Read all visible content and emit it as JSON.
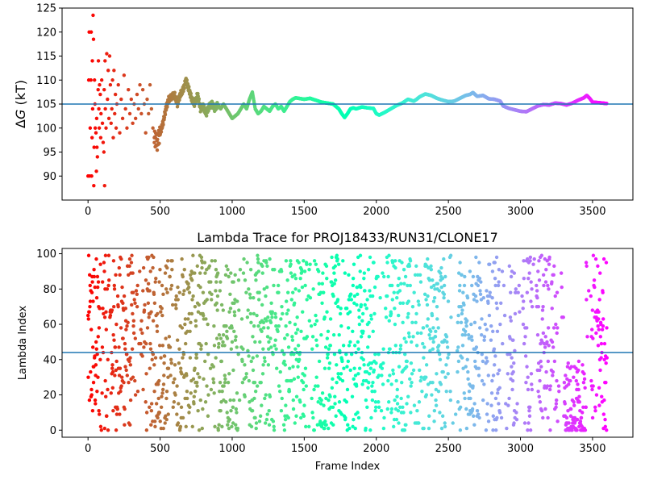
{
  "chart_data": [
    {
      "type": "scatter",
      "title": "",
      "xlabel": "",
      "ylabel": "ΔG (kT)",
      "ylabel_main": "Δ",
      "ylabel_italic": "G",
      "ylabel_unit": " (kT)",
      "xlim": [
        -180,
        3780
      ],
      "ylim": [
        85,
        125
      ],
      "xticks": [
        0,
        500,
        1000,
        1500,
        2000,
        2500,
        3000,
        3500
      ],
      "yticks": [
        90,
        95,
        100,
        105,
        110,
        115,
        120,
        125
      ],
      "hline": 105,
      "hline_color": "#1f77b4",
      "grid": false,
      "colormap": "rainbow",
      "n_frames": 3600,
      "early_scatter": [
        [
          0,
          90
        ],
        [
          5,
          110
        ],
        [
          8,
          120
        ],
        [
          12,
          90
        ],
        [
          15,
          100
        ],
        [
          20,
          110
        ],
        [
          22,
          120
        ],
        [
          25,
          90
        ],
        [
          28,
          98
        ],
        [
          30,
          114
        ],
        [
          32,
          104
        ],
        [
          35,
          123.5
        ],
        [
          38,
          118.5
        ],
        [
          40,
          88
        ],
        [
          42,
          96
        ],
        [
          45,
          110
        ],
        [
          48,
          105
        ],
        [
          50,
          100
        ],
        [
          55,
          99
        ],
        [
          58,
          91
        ],
        [
          60,
          102
        ],
        [
          62,
          96
        ],
        [
          65,
          94
        ],
        [
          70,
          108
        ],
        [
          72,
          114
        ],
        [
          75,
          104
        ],
        [
          78,
          100
        ],
        [
          80,
          109
        ],
        [
          85,
          107
        ],
        [
          88,
          98
        ],
        [
          90,
          103
        ],
        [
          95,
          110
        ],
        [
          100,
          101
        ],
        [
          105,
          97
        ],
        [
          110,
          95
        ],
        [
          112,
          108
        ],
        [
          115,
          88
        ],
        [
          118,
          114
        ],
        [
          120,
          104
        ],
        [
          125,
          100
        ],
        [
          130,
          115.5
        ],
        [
          135,
          106
        ],
        [
          140,
          112
        ],
        [
          145,
          102
        ],
        [
          150,
          115
        ],
        [
          155,
          109
        ],
        [
          160,
          101
        ],
        [
          165,
          104
        ],
        [
          170,
          110
        ],
        [
          175,
          98
        ],
        [
          180,
          112
        ],
        [
          185,
          103
        ],
        [
          190,
          107
        ],
        [
          195,
          100
        ],
        [
          200,
          105
        ],
        [
          210,
          109
        ],
        [
          220,
          99
        ],
        [
          230,
          106
        ],
        [
          240,
          102
        ],
        [
          250,
          111
        ],
        [
          260,
          104
        ],
        [
          270,
          100
        ],
        [
          280,
          108
        ],
        [
          290,
          103
        ],
        [
          300,
          106
        ],
        [
          310,
          101
        ],
        [
          320,
          105
        ],
        [
          330,
          102
        ],
        [
          340,
          107
        ],
        [
          350,
          104
        ],
        [
          360,
          109
        ],
        [
          370,
          103
        ],
        [
          380,
          108
        ],
        [
          390,
          105
        ],
        [
          400,
          99
        ],
        [
          410,
          106
        ],
        [
          420,
          103
        ],
        [
          430,
          109
        ],
        [
          440,
          104
        ],
        [
          450,
          100
        ],
        [
          460,
          98
        ]
      ],
      "trend": [
        [
          460,
          98
        ],
        [
          480,
          97
        ],
        [
          500,
          99
        ],
        [
          520,
          101
        ],
        [
          540,
          104
        ],
        [
          560,
          106
        ],
        [
          580,
          106.5
        ],
        [
          600,
          107
        ],
        [
          620,
          105
        ],
        [
          640,
          107
        ],
        [
          660,
          108
        ],
        [
          680,
          110
        ],
        [
          700,
          108
        ],
        [
          720,
          106
        ],
        [
          740,
          105
        ],
        [
          760,
          107
        ],
        [
          780,
          104
        ],
        [
          800,
          104.5
        ],
        [
          820,
          103
        ],
        [
          840,
          104.5
        ],
        [
          860,
          105
        ],
        [
          880,
          104
        ],
        [
          900,
          105
        ],
        [
          920,
          104
        ],
        [
          940,
          105
        ],
        [
          960,
          104
        ],
        [
          980,
          103
        ],
        [
          1000,
          102
        ],
        [
          1020,
          102.5
        ],
        [
          1040,
          103
        ],
        [
          1060,
          104
        ],
        [
          1080,
          105
        ],
        [
          1100,
          104
        ],
        [
          1120,
          106
        ],
        [
          1140,
          107.5
        ],
        [
          1160,
          104
        ],
        [
          1180,
          103
        ],
        [
          1200,
          103.5
        ],
        [
          1220,
          104.5
        ],
        [
          1240,
          104
        ],
        [
          1260,
          103.5
        ],
        [
          1280,
          104.5
        ],
        [
          1300,
          105
        ],
        [
          1320,
          104
        ],
        [
          1340,
          104.5
        ],
        [
          1360,
          103.5
        ],
        [
          1380,
          104.5
        ],
        [
          1400,
          105.5
        ],
        [
          1420,
          106
        ],
        [
          1440,
          106.3
        ],
        [
          1460,
          106.2
        ],
        [
          1500,
          106
        ],
        [
          1540,
          106.2
        ],
        [
          1580,
          105.8
        ],
        [
          1620,
          105.4
        ],
        [
          1660,
          105.2
        ],
        [
          1700,
          105
        ],
        [
          1740,
          104
        ],
        [
          1760,
          103
        ],
        [
          1780,
          102.2
        ],
        [
          1800,
          103
        ],
        [
          1820,
          104
        ],
        [
          1840,
          104.2
        ],
        [
          1860,
          104
        ],
        [
          1900,
          104.4
        ],
        [
          1940,
          104.2
        ],
        [
          1980,
          104.1
        ],
        [
          2000,
          103
        ],
        [
          2020,
          102.7
        ],
        [
          2060,
          103.3
        ],
        [
          2100,
          104
        ],
        [
          2140,
          104.7
        ],
        [
          2180,
          105.2
        ],
        [
          2220,
          106
        ],
        [
          2260,
          105.6
        ],
        [
          2280,
          106
        ],
        [
          2300,
          106.5
        ],
        [
          2340,
          107.1
        ],
        [
          2380,
          106.8
        ],
        [
          2420,
          106.2
        ],
        [
          2460,
          105.8
        ],
        [
          2500,
          105.5
        ],
        [
          2540,
          105.6
        ],
        [
          2580,
          106.2
        ],
        [
          2620,
          106.8
        ],
        [
          2650,
          107
        ],
        [
          2670,
          107.4
        ],
        [
          2700,
          106.6
        ],
        [
          2740,
          106.8
        ],
        [
          2780,
          106.1
        ],
        [
          2820,
          106
        ],
        [
          2860,
          105.6
        ],
        [
          2880,
          104.6
        ],
        [
          2920,
          104.1
        ],
        [
          2960,
          103.8
        ],
        [
          3000,
          103.5
        ],
        [
          3040,
          103.4
        ],
        [
          3080,
          104
        ],
        [
          3120,
          104.6
        ],
        [
          3160,
          104.9
        ],
        [
          3200,
          104.8
        ],
        [
          3240,
          105.2
        ],
        [
          3280,
          105.1
        ],
        [
          3320,
          104.8
        ],
        [
          3360,
          105.2
        ],
        [
          3400,
          105.8
        ],
        [
          3440,
          106.3
        ],
        [
          3460,
          106.8
        ],
        [
          3480,
          106.2
        ],
        [
          3500,
          105.4
        ],
        [
          3540,
          105.3
        ],
        [
          3600,
          105.1
        ]
      ]
    },
    {
      "type": "scatter",
      "title": "Lambda Trace for PROJ18433/RUN31/CLONE17",
      "xlabel": "Frame Index",
      "ylabel": "Lambda Index",
      "xlim": [
        -180,
        3780
      ],
      "ylim": [
        -4,
        103
      ],
      "xticks": [
        0,
        500,
        1000,
        1500,
        2000,
        2500,
        3000,
        3500
      ],
      "yticks": [
        0,
        20,
        40,
        60,
        80,
        100
      ],
      "hline": 44,
      "hline_color": "#1f77b4",
      "grid": false,
      "colormap": "rainbow",
      "n_frames": 3600,
      "lambda_range": [
        0,
        99
      ],
      "density_note_sparse_regions": [
        [
          2520,
          2560
        ],
        [
          2860,
          2920
        ],
        [
          2985,
          3015
        ],
        [
          3080,
          3110
        ],
        [
          3270,
          3300
        ],
        [
          3460,
          3490
        ]
      ]
    }
  ]
}
